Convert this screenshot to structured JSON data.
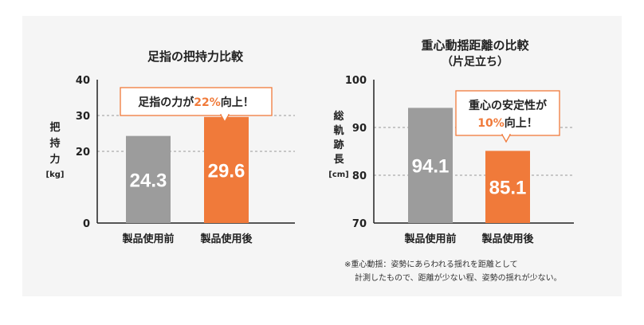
{
  "colors": {
    "panel_bg": "#f5f5f5",
    "gray_bar": "#9c9c9c",
    "orange_bar": "#f07a3a",
    "accent_text": "#f07a3a",
    "text": "#222222",
    "dashed_grid": "#999999"
  },
  "chart_data": [
    {
      "type": "bar",
      "title": "足指の把持力比較",
      "ylabel": "把持力[kg]",
      "ylabel_lines": [
        "把",
        "持",
        "力",
        "[kg]"
      ],
      "categories": [
        "製品使用前",
        "製品使用後"
      ],
      "values": [
        24.3,
        29.6
      ],
      "value_labels": [
        "24.3",
        "29.6"
      ],
      "bar_colors": [
        "#9c9c9c",
        "#f07a3a"
      ],
      "ylim": [
        0,
        40
      ],
      "yticks": [
        "0",
        "20",
        "30",
        "40"
      ],
      "ytick_values": [
        0,
        20,
        30,
        40
      ],
      "dashed_gridlines": [
        20,
        30
      ],
      "callout": {
        "prefix": "足指の力が",
        "highlight": "22%",
        "suffix": "向上！"
      }
    },
    {
      "type": "bar",
      "title": "重心動揺距離の比較",
      "subtitle": "（片足立ち）",
      "ylabel": "総軌跡長[cm]",
      "ylabel_lines": [
        "総",
        "軌",
        "跡",
        "長",
        "[cm]"
      ],
      "categories": [
        "製品使用前",
        "製品使用後"
      ],
      "values": [
        94.1,
        85.1
      ],
      "value_labels": [
        "94.1",
        "85.1"
      ],
      "bar_colors": [
        "#9c9c9c",
        "#f07a3a"
      ],
      "ylim": [
        70,
        100
      ],
      "yticks": [
        "70",
        "80",
        "90",
        "100"
      ],
      "ytick_values": [
        70,
        80,
        90,
        100
      ],
      "dashed_gridlines": [
        80,
        90
      ],
      "callout": {
        "line1": "重心の安定性が",
        "highlight": "10%",
        "suffix": "向上！"
      }
    }
  ],
  "footnote": {
    "line1": "※重心動揺：姿勢にあらわれる揺れを距離として",
    "line2": "計測したもので、距離が少ない程、姿勢の揺れが少ない。"
  }
}
